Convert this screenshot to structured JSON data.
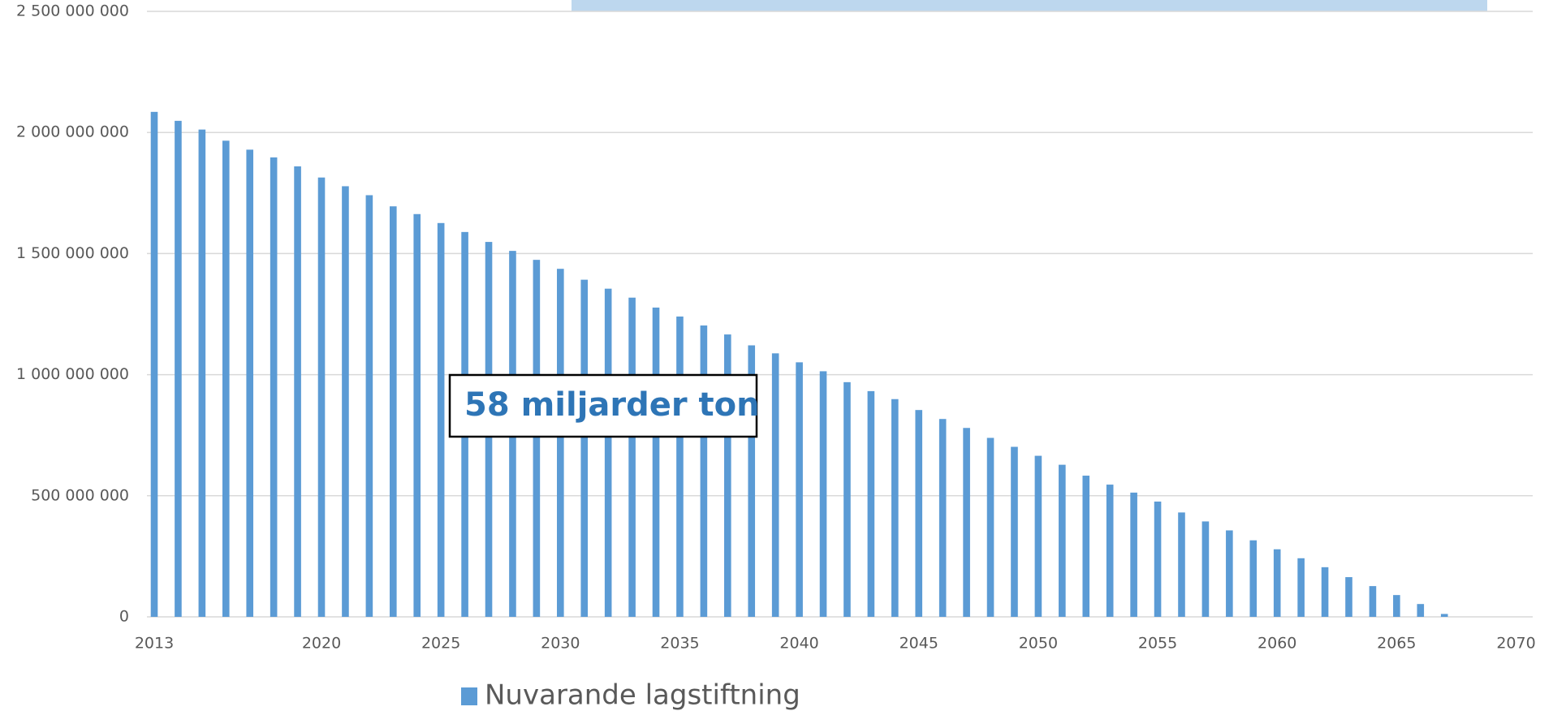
{
  "chart_data": {
    "type": "bar",
    "categories": [
      "2013",
      null,
      null,
      null,
      null,
      null,
      null,
      "2020",
      null,
      null,
      null,
      null,
      "2025",
      null,
      null,
      null,
      null,
      "2030",
      null,
      null,
      null,
      null,
      "2035",
      null,
      null,
      null,
      null,
      "2040",
      null,
      null,
      null,
      null,
      "2045",
      null,
      null,
      null,
      null,
      "2050",
      null,
      null,
      null,
      null,
      "2055",
      null,
      null,
      null,
      null,
      "2060",
      null,
      null,
      null,
      null,
      "2065",
      null,
      null,
      null,
      null,
      "2070"
    ],
    "series": [
      {
        "name": "Nuvarande lagstiftning",
        "color": "#5b9bd5",
        "values": [
          2085000000,
          2048000000,
          2012000000,
          1966000000,
          1929000000,
          1897000000,
          1860000000,
          1814000000,
          1778000000,
          1741000000,
          1695000000,
          1663000000,
          1626000000,
          1589000000,
          1548000000,
          1511000000,
          1474000000,
          1437000000,
          1392000000,
          1355000000,
          1318000000,
          1277000000,
          1240000000,
          1203000000,
          1166000000,
          1121000000,
          1088000000,
          1051000000,
          1014000000,
          969000000,
          932000000,
          899000000,
          854000000,
          817000000,
          780000000,
          739000000,
          702000000,
          665000000,
          628000000,
          583000000,
          546000000,
          513000000,
          476000000,
          431000000,
          394000000,
          357000000,
          316000000,
          279000000,
          242000000,
          205000000,
          164000000,
          127000000,
          90000000,
          53000000,
          12000000,
          0,
          0,
          0
        ]
      }
    ],
    "ylim": [
      0,
      2500000000
    ],
    "yticks": [
      0,
      {
        "value": 500000000,
        "label": "500 000 000"
      },
      {
        "value": 1000000000,
        "label": "1 000 000 000"
      },
      {
        "value": 1500000000,
        "label": "1 500 000 000"
      },
      {
        "value": 2000000000,
        "label": "2 000 000 000"
      },
      {
        "value": 2500000000,
        "label": "2 500 000 000"
      }
    ],
    "grid": true,
    "legend": "bottom",
    "annotation": "58 miljarder ton"
  }
}
